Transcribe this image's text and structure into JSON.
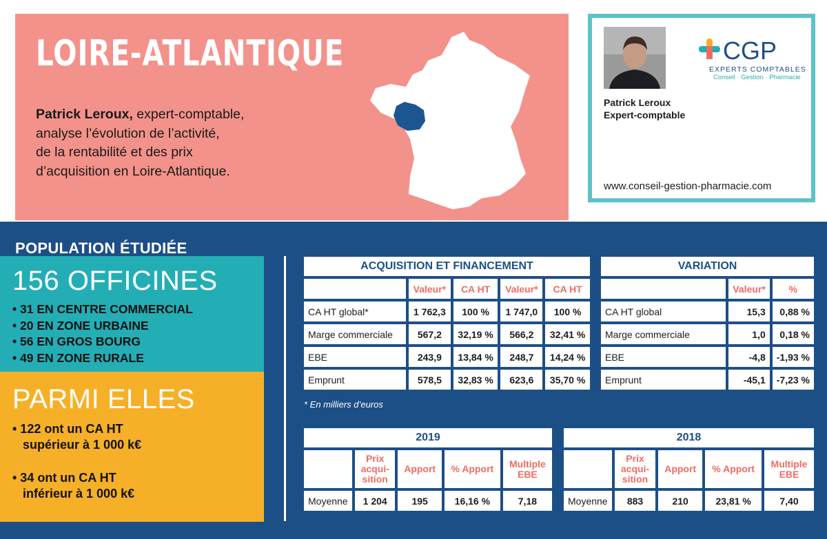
{
  "banner": {
    "title": "LOIRE-ATLANTIQUE",
    "author_name": "Patrick Leroux,",
    "intro_line1": " expert-comptable,",
    "intro_line2": "analyse l’évolution de l’activité,",
    "intro_line3": "de la rentabilité et des prix",
    "intro_line4": "d’acquisition en Loire-Atlantique.",
    "map_icon": "france-map-icon",
    "map_color": "#ffffff",
    "highlight_color": "#1d5591"
  },
  "card": {
    "name": "Patrick Leroux",
    "role": "Expert-comptable",
    "url": "www.conseil-gestion-pharmacie.com",
    "logo": {
      "brand": "CGP",
      "line1": "EXPERTS COMPTABLES",
      "line2": "Conseil · Gestion · Pharmacie"
    },
    "border_color": "#5bc3c8"
  },
  "population": {
    "title": "POPULATION ÉTUDIÉE",
    "heading": "156 OFFICINES",
    "items": [
      "• 31 EN CENTRE COMMERCIAL",
      "• 20 EN ZONE URBAINE",
      "• 56 EN GROS BOURG",
      "• 49 EN ZONE RURALE"
    ],
    "sub_heading": "PARMI ELLES",
    "sub_items": [
      {
        "line1": "• 122 ont un CA HT",
        "line2": "supérieur à 1 000 k€"
      },
      {
        "line1": "• 34 ont un CA HT",
        "line2": "inférieur à 1 000 k€"
      }
    ]
  },
  "acquisition": {
    "title": "ACQUISITION ET FINANCEMENT",
    "headers": [
      "Valeur*",
      "CA HT",
      "Valeur*",
      "CA HT"
    ],
    "rows": [
      {
        "label": "CA HT global*",
        "values": [
          "1 762,3",
          "100 %",
          "1 747,0",
          "100 %"
        ]
      },
      {
        "label": "Marge commerciale",
        "values": [
          "567,2",
          "32,19 %",
          "566,2",
          "32,41 %"
        ]
      },
      {
        "label": "EBE",
        "values": [
          "243,9",
          "13,84 %",
          "248,7",
          "14,24 %"
        ]
      },
      {
        "label": "Emprunt",
        "values": [
          "578,5",
          "32,83 %",
          "623,6",
          "35,70 %"
        ]
      }
    ]
  },
  "variation": {
    "title": "VARIATION",
    "headers": [
      "Valeur*",
      "%"
    ],
    "rows": [
      {
        "label": "CA HT global",
        "values": [
          "15,3",
          "0,88 %"
        ]
      },
      {
        "label": "Marge commerciale",
        "values": [
          "1,0",
          "0,18 %"
        ]
      },
      {
        "label": "EBE",
        "values": [
          "-4,8",
          "-1,93 %"
        ]
      },
      {
        "label": "Emprunt",
        "values": [
          "-45,1",
          "-7,23 %"
        ]
      }
    ]
  },
  "footnote": "* En milliers d’euros",
  "y2019": {
    "title": "2019",
    "headers": [
      {
        "line1": "Prix",
        "line2": "acqui-",
        "line3": "sition"
      },
      {
        "line1": "Apport"
      },
      {
        "line1": "% Apport"
      },
      {
        "line1": "Multiple",
        "line2": "EBE"
      }
    ],
    "row_label": "Moyenne",
    "values": [
      "1 204",
      "195",
      "16,16 %",
      "7,18"
    ]
  },
  "y2018": {
    "title": "2018",
    "headers": [
      {
        "line1": "Prix",
        "line2": "acqui-",
        "line3": "sition"
      },
      {
        "line1": "Apport"
      },
      {
        "line1": "% Apport"
      },
      {
        "line1": "Multiple",
        "line2": "EBE"
      }
    ],
    "row_label": "Moyenne",
    "values": [
      "883",
      "210",
      "23,81 %",
      "7,40"
    ]
  },
  "colors": {
    "banner_bg": "#f2928b",
    "section_bg": "#1d4f87",
    "teal": "#23aeb6",
    "yellow": "#f6b028",
    "header_red": "#f16b62"
  }
}
